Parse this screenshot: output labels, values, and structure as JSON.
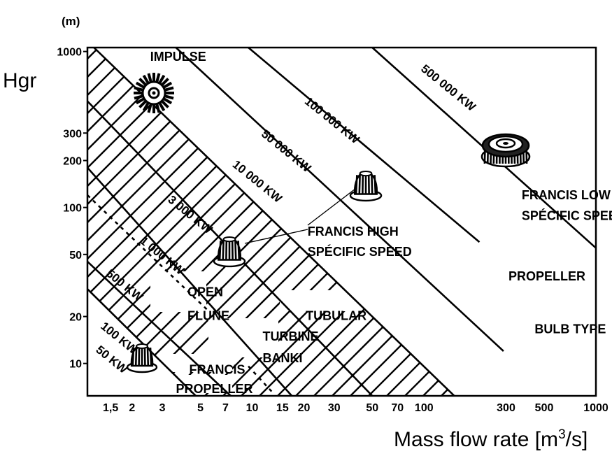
{
  "chart_data": {
    "type": "line",
    "title": "",
    "xlabel": "Mass flow rate [m³/s]",
    "ylabel": "Hgr",
    "y_unit": "(m)",
    "x_scale": "log",
    "y_scale": "log",
    "xlim": [
      1.1,
      1000
    ],
    "ylim": [
      6.2,
      1060
    ],
    "x_ticks": [
      {
        "v": 1.5,
        "label": "1,5"
      },
      {
        "v": 2,
        "label": "2"
      },
      {
        "v": 3,
        "label": "3"
      },
      {
        "v": 5,
        "label": "5"
      },
      {
        "v": 7,
        "label": "7"
      },
      {
        "v": 10,
        "label": "10"
      },
      {
        "v": 15,
        "label": "15"
      },
      {
        "v": 20,
        "label": "20"
      },
      {
        "v": 30,
        "label": "30"
      },
      {
        "v": 50,
        "label": "50"
      },
      {
        "v": 70,
        "label": "70"
      },
      {
        "v": 100,
        "label": "100"
      },
      {
        "v": 300,
        "label": "300"
      },
      {
        "v": 500,
        "label": "500"
      },
      {
        "v": 1000,
        "label": "1000"
      }
    ],
    "y_ticks": [
      {
        "v": 1000,
        "label": "1000"
      },
      {
        "v": 300,
        "label": "300"
      },
      {
        "v": 200,
        "label": "200"
      },
      {
        "v": 100,
        "label": "100"
      },
      {
        "v": 50,
        "label": "50"
      },
      {
        "v": 20,
        "label": "20"
      },
      {
        "v": 10,
        "label": "10"
      }
    ],
    "power_lines": [
      {
        "name": "50 KW",
        "x": [
          1.1,
          4.7
        ],
        "y": [
          30,
          6.2
        ]
      },
      {
        "name": "100 KW",
        "x": [
          1.1,
          7.5
        ],
        "y": [
          45,
          6.2
        ]
      },
      {
        "name": "500 KW",
        "x": [
          1.1,
          5.5
        ],
        "y": [
          120,
          22
        ]
      },
      {
        "name": "1 000 KW",
        "x": [
          1.1,
          17
        ],
        "y": [
          180,
          6.2
        ]
      },
      {
        "name": "3 000 KW",
        "x": [
          1.1,
          50
        ],
        "y": [
          480,
          6.2
        ]
      },
      {
        "name": "10 000 KW",
        "x": [
          1.2,
          150
        ],
        "y": [
          1060,
          6.2
        ]
      },
      {
        "name": "50 000 KW",
        "x": [
          3.6,
          290
        ],
        "y": [
          1060,
          12
        ]
      },
      {
        "name": "100 000 KW",
        "x": [
          9.5,
          210
        ],
        "y": [
          1060,
          60
        ]
      },
      {
        "name": "500 000 KW",
        "x": [
          50,
          1000
        ],
        "y": [
          1060,
          55
        ]
      }
    ],
    "power_labels": [
      {
        "text": "50 KW",
        "x": 1.22,
        "y": 12
      },
      {
        "text": "100 KW",
        "x": 1.3,
        "y": 17
      },
      {
        "text": "500 KW",
        "x": 1.4,
        "y": 37
      },
      {
        "text": "1 000 KW",
        "x": 2.2,
        "y": 60
      },
      {
        "text": "3 000 KW",
        "x": 3.2,
        "y": 110
      },
      {
        "text": "10 000 KW",
        "x": 7.6,
        "y": 185
      },
      {
        "text": "50 000 KW",
        "x": 11.2,
        "y": 290
      },
      {
        "text": "100 000 KW",
        "x": 20,
        "y": 470
      },
      {
        "text": "500 000 KW",
        "x": 95,
        "y": 760
      }
    ],
    "regions": [
      {
        "text": "IMPULSE",
        "x": 2.55,
        "y": 870
      },
      {
        "text": "OPEN",
        "x": 4.2,
        "y": 27
      },
      {
        "text": "FLUNE",
        "x": 4.2,
        "y": 19
      },
      {
        "text": "TUBULAR",
        "x": 20.5,
        "y": 19
      },
      {
        "text": "TURBINE",
        "x": 11.5,
        "y": 14
      },
      {
        "text": "BANKI",
        "x": 11.5,
        "y": 10.2
      },
      {
        "text": "FRANCIS",
        "x": 4.3,
        "y": 8.6
      },
      {
        "text": "PROPELLER",
        "x": 3.6,
        "y": 6.45
      },
      {
        "text": "FRANCIS HIGH",
        "x": 21,
        "y": 66
      },
      {
        "text": "SPÉCIFIC SPEED",
        "x": 21,
        "y": 49
      },
      {
        "text": "FRANCIS LOW",
        "x": 370,
        "y": 113
      },
      {
        "text": "SPÉCIFIC SPEED",
        "x": 370,
        "y": 83
      },
      {
        "text": "PROPELLER",
        "x": 310,
        "y": 34
      },
      {
        "text": "BULB TYPE",
        "x": 440,
        "y": 15.6
      }
    ],
    "hatched_area": "bounded by 10 000 KW line, 500 KW line and 50 KW line",
    "grid": false,
    "legend": "none"
  }
}
